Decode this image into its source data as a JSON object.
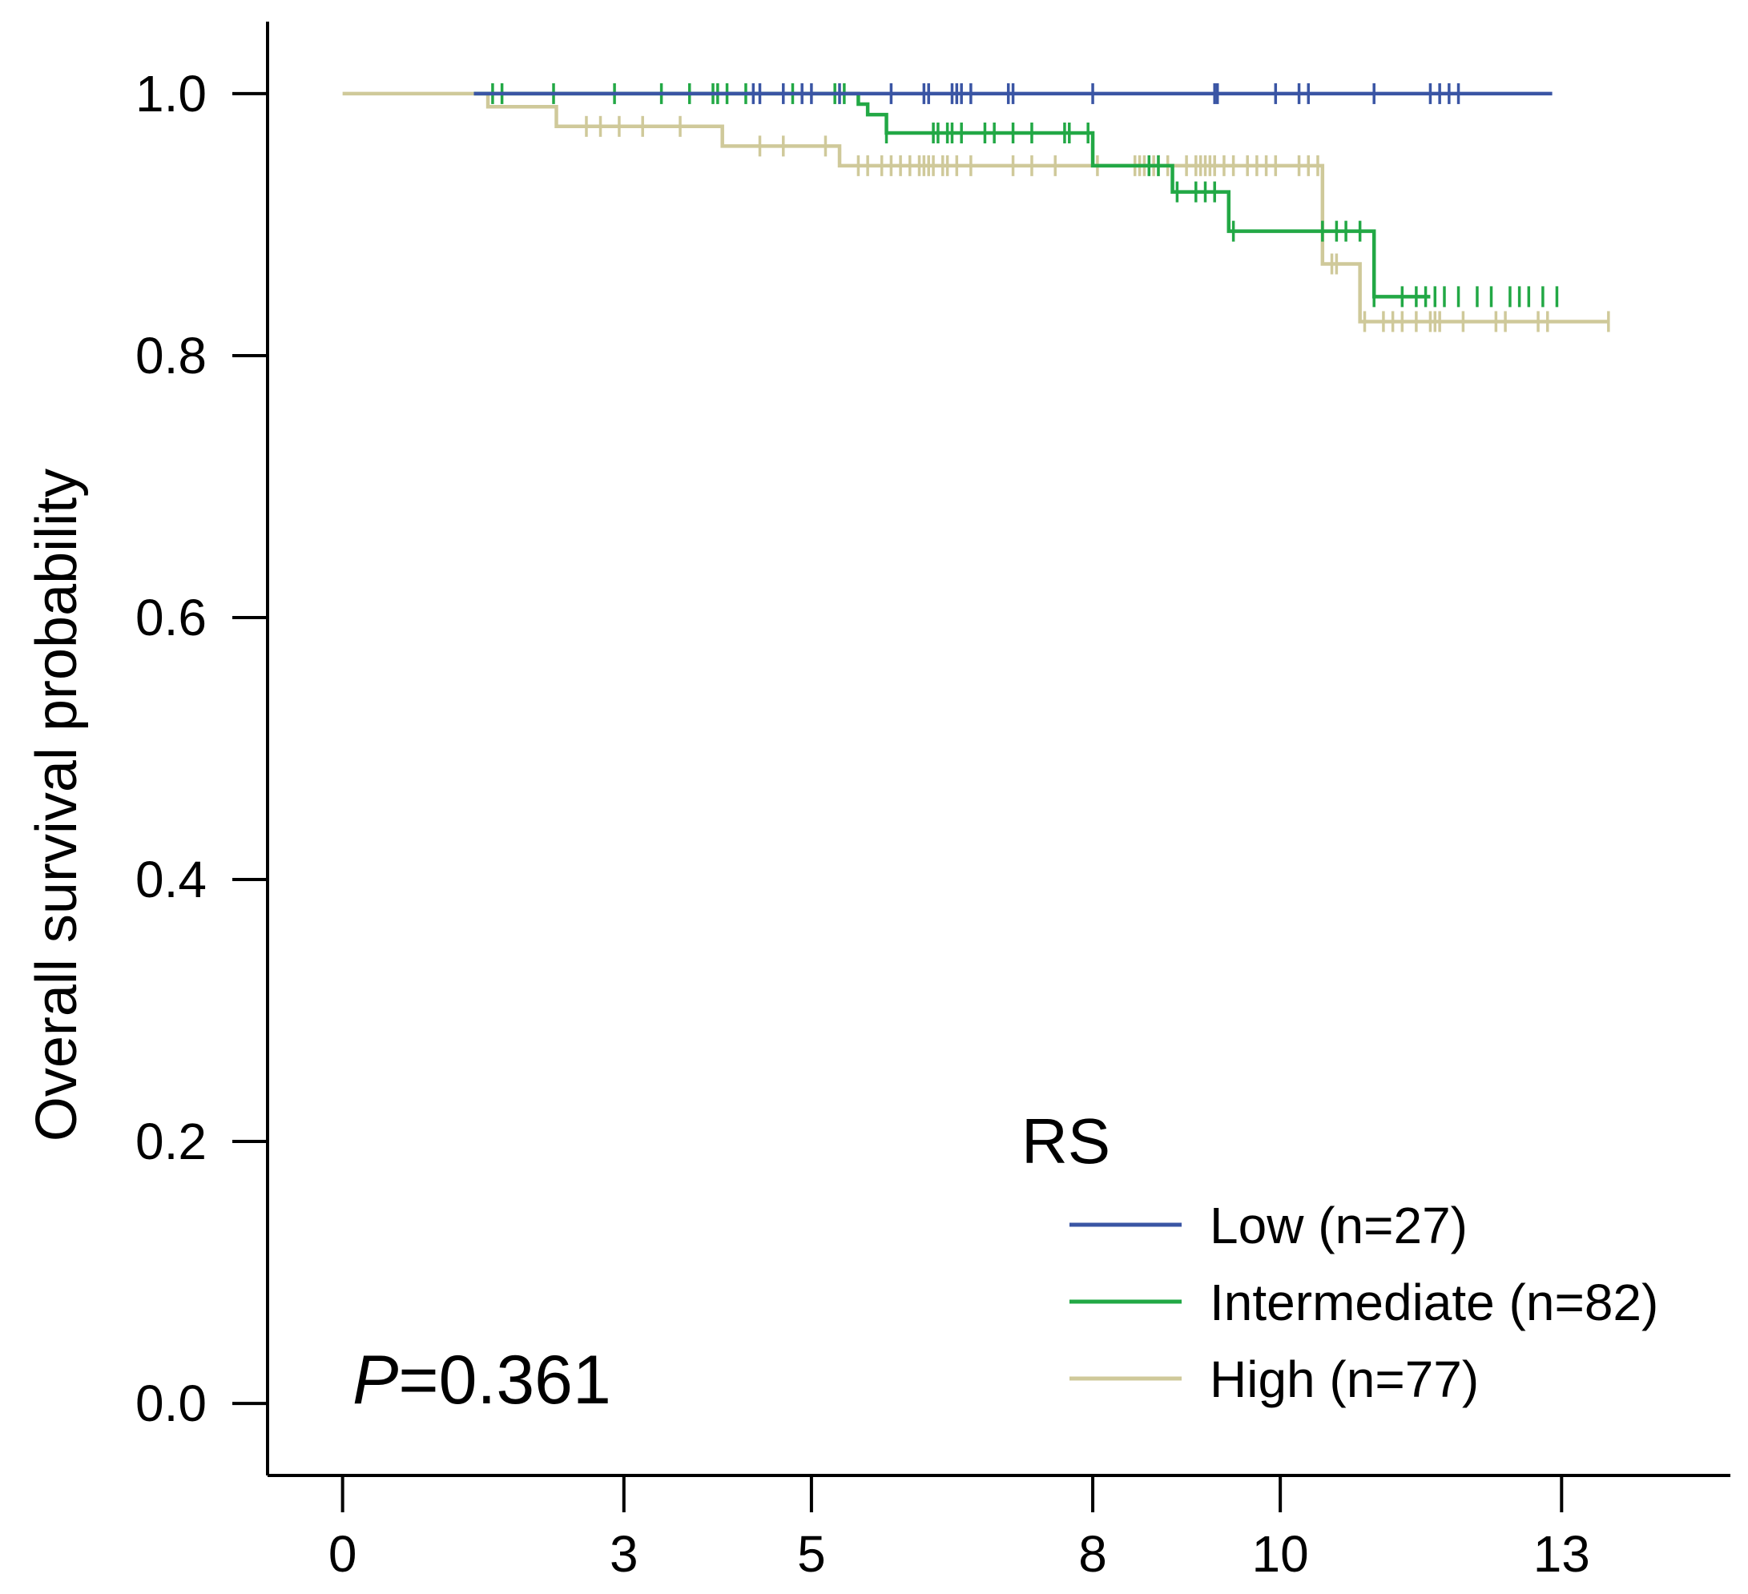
{
  "chart_data": {
    "type": "line",
    "subtype": "kaplan-meier",
    "xlabel": "",
    "ylabel": "Overall survival probability",
    "x_ticks": [
      0,
      3,
      5,
      8,
      10,
      13
    ],
    "y_ticks": [
      "0.0",
      "0.2",
      "0.4",
      "0.6",
      "0.8",
      "1.0"
    ],
    "y_tick_values": [
      0.0,
      0.2,
      0.4,
      0.6,
      0.8,
      1.0
    ],
    "xlim": [
      -0.8,
      14.8
    ],
    "ylim": [
      -0.055,
      1.055
    ],
    "legend_title": "RS",
    "legend_position": "bottom-right",
    "pvalue_prefix": "P",
    "pvalue_text": "=0.361",
    "series": [
      {
        "name": "Low (n=27)",
        "color": "#3a55a4",
        "steps": [
          [
            1.4,
            1.0
          ],
          [
            12.9,
            1.0
          ]
        ],
        "censor_times": [
          4.38,
          4.45,
          4.7,
          4.9,
          5.0,
          5.3,
          5.85,
          6.2,
          6.25,
          6.5,
          6.55,
          6.6,
          6.7,
          7.1,
          7.15,
          8.0,
          9.3,
          9.33,
          9.95,
          10.2,
          10.3,
          11.0,
          11.6,
          11.7,
          11.8,
          11.9
        ]
      },
      {
        "name": "Intermediate (n=82)",
        "color": "#22a845",
        "steps": [
          [
            1.4,
            1.0
          ],
          [
            5.5,
            0.992
          ],
          [
            5.6,
            0.984
          ],
          [
            5.8,
            0.97
          ],
          [
            8.0,
            0.945
          ],
          [
            8.85,
            0.925
          ],
          [
            9.45,
            0.895
          ],
          [
            11.0,
            0.845
          ],
          [
            11.6,
            0.845
          ]
        ],
        "censor_times": [
          1.6,
          1.7,
          2.25,
          2.9,
          3.4,
          3.7,
          3.95,
          4.0,
          4.1,
          4.3,
          4.8,
          5.25,
          5.35,
          5.8,
          6.3,
          6.35,
          6.45,
          6.5,
          6.6,
          6.85,
          6.95,
          7.15,
          7.35,
          7.7,
          7.75,
          7.95,
          8.6,
          8.7,
          8.9,
          9.1,
          9.2,
          9.3,
          9.5,
          10.45,
          10.6,
          10.7,
          10.85,
          11.0,
          11.3,
          11.45,
          11.55,
          11.65,
          11.75,
          11.9,
          12.1,
          12.25,
          12.45,
          12.55,
          12.65,
          12.8,
          12.95
        ]
      },
      {
        "name": "High (n=77)",
        "color": "#cfc99a",
        "steps": [
          [
            0.0,
            1.0
          ],
          [
            1.55,
            0.99
          ],
          [
            2.28,
            0.975
          ],
          [
            4.05,
            0.96
          ],
          [
            5.3,
            0.945
          ],
          [
            10.45,
            0.87
          ],
          [
            10.85,
            0.826
          ],
          [
            13.5,
            0.826
          ]
        ],
        "censor_times": [
          2.6,
          2.75,
          2.95,
          3.2,
          3.6,
          4.45,
          4.7,
          5.15,
          5.5,
          5.6,
          5.75,
          5.85,
          5.95,
          6.05,
          6.15,
          6.2,
          6.25,
          6.3,
          6.4,
          6.45,
          6.55,
          6.7,
          7.15,
          7.35,
          7.6,
          8.05,
          8.45,
          8.5,
          8.55,
          8.65,
          8.7,
          8.8,
          9.0,
          9.1,
          9.15,
          9.2,
          9.25,
          9.3,
          9.4,
          9.5,
          9.65,
          9.75,
          9.85,
          9.95,
          10.2,
          10.3,
          10.4,
          10.55,
          10.6,
          10.9,
          11.1,
          11.2,
          11.3,
          11.45,
          11.6,
          11.65,
          11.7,
          11.95,
          12.3,
          12.4,
          12.75,
          12.85,
          13.5
        ]
      }
    ]
  }
}
